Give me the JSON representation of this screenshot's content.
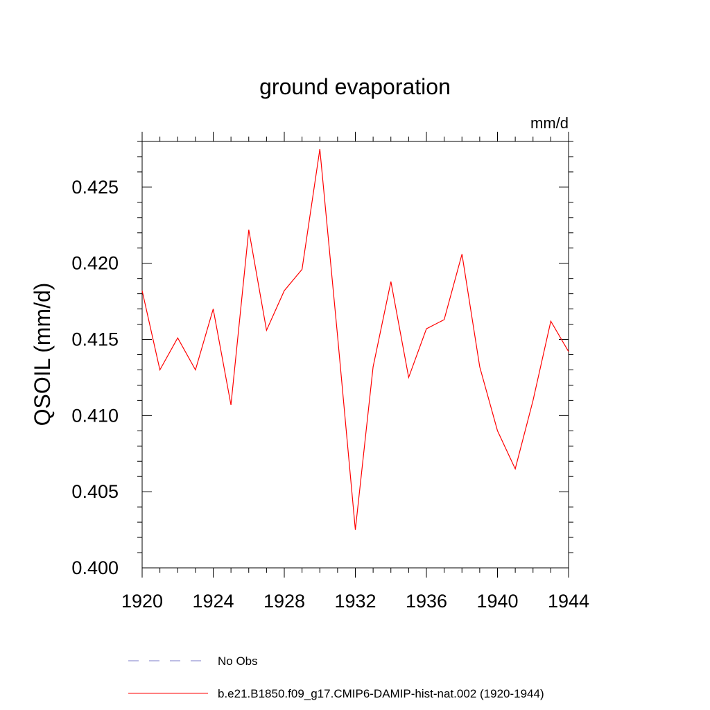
{
  "chart_data": {
    "type": "line",
    "title": "ground evaporation",
    "units_label": "mm/d",
    "ylabel": "QSOIL  (mm/d)",
    "xlabel": "",
    "xlim": [
      1920,
      1944
    ],
    "ylim": [
      0.4,
      0.428
    ],
    "x_ticks": [
      1920,
      1924,
      1928,
      1932,
      1936,
      1940,
      1944
    ],
    "x_tick_labels": [
      "1920",
      "1924",
      "1928",
      "1932",
      "1936",
      "1940",
      "1944"
    ],
    "y_ticks": [
      0.4,
      0.405,
      0.41,
      0.415,
      0.42,
      0.425
    ],
    "y_tick_labels": [
      "0.400",
      "0.405",
      "0.410",
      "0.415",
      "0.420",
      "0.425"
    ],
    "grid": false,
    "legend_position": "bottom",
    "series": [
      {
        "name": "No Obs",
        "style": "dashed",
        "color": "#7B7BC8",
        "x": [],
        "values": []
      },
      {
        "name": "b.e21.B1850.f09_g17.CMIP6-DAMIP-hist-nat.002 (1920-1944)",
        "style": "solid",
        "color": "#FF0000",
        "x": [
          1920,
          1921,
          1922,
          1923,
          1924,
          1925,
          1926,
          1927,
          1928,
          1929,
          1930,
          1931,
          1932,
          1933,
          1934,
          1935,
          1936,
          1937,
          1938,
          1939,
          1940,
          1941,
          1942,
          1943,
          1944
        ],
        "values": [
          0.4182,
          0.413,
          0.4151,
          0.413,
          0.417,
          0.4107,
          0.4222,
          0.4156,
          0.4182,
          0.4196,
          0.4275,
          0.4152,
          0.4025,
          0.4132,
          0.4188,
          0.4125,
          0.4157,
          0.4163,
          0.4206,
          0.4132,
          0.409,
          0.4065,
          0.411,
          0.4162,
          0.4142
        ]
      }
    ]
  }
}
